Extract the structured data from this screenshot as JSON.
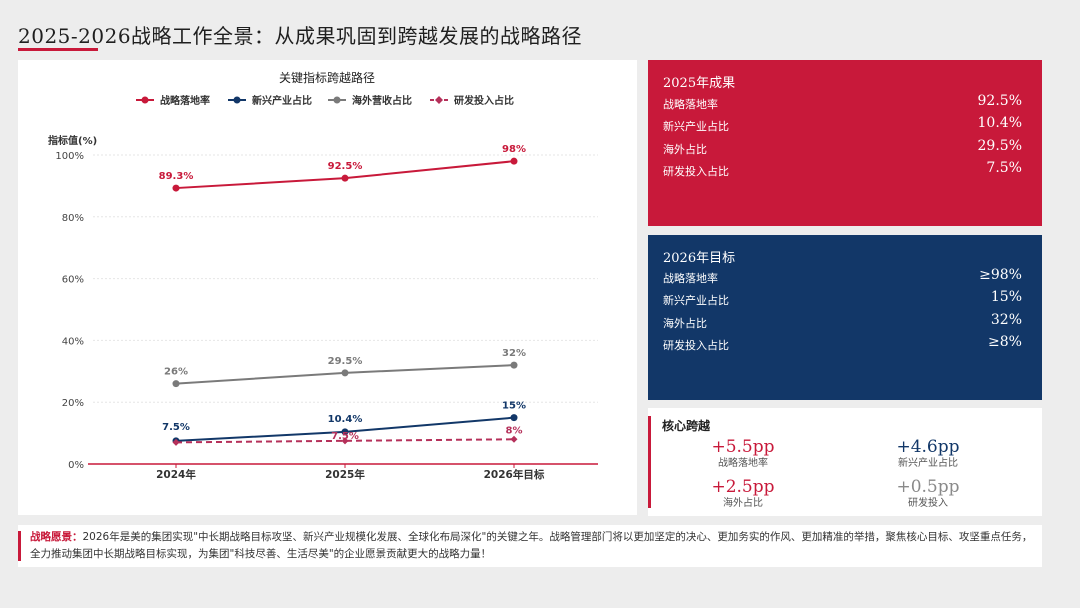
{
  "title": "2025-2026战略工作全景：从成果巩固到跨越发展的战略路径",
  "colors": {
    "red": "#c8193a",
    "navy": "#123768",
    "gray": "#7a7a7a",
    "crimson": "#b5305a"
  },
  "chart_data": {
    "type": "line",
    "title": "关键指标跨越路径",
    "ylabel": "指标值(%)",
    "xlabel": "",
    "categories": [
      "2024年",
      "2025年",
      "2026年目标"
    ],
    "ylim": [
      0,
      100
    ],
    "yticks": [
      0,
      20,
      40,
      60,
      80,
      100
    ],
    "ytick_labels": [
      "0%",
      "20%",
      "40%",
      "60%",
      "80%",
      "100%"
    ],
    "grid": true,
    "legend": "top",
    "series": [
      {
        "name": "战略落地率",
        "values": [
          89.3,
          92.5,
          98
        ],
        "labels": [
          "89.3%",
          "92.5%",
          "98%"
        ],
        "color": "#c8193a",
        "dashed": false
      },
      {
        "name": "新兴产业占比",
        "values": [
          7.5,
          10.4,
          15
        ],
        "labels": [
          "7.5%",
          "10.4%",
          "15%"
        ],
        "color": "#123768",
        "dashed": false
      },
      {
        "name": "海外营收占比",
        "values": [
          26,
          29.5,
          32
        ],
        "labels": [
          "26%",
          "29.5%",
          "32%"
        ],
        "color": "#7a7a7a",
        "dashed": false
      },
      {
        "name": "研发投入占比",
        "values": [
          7,
          7.5,
          8
        ],
        "labels": [
          "",
          "7.5%",
          "8%"
        ],
        "color": "#b5305a",
        "dashed": true
      }
    ]
  },
  "results2025": {
    "title": "2025年成果",
    "rows": [
      {
        "label": "战略落地率",
        "value": "92.5%"
      },
      {
        "label": "新兴产业占比",
        "value": "10.4%"
      },
      {
        "label": "海外占比",
        "value": "29.5%"
      },
      {
        "label": "研发投入占比",
        "value": "7.5%"
      }
    ]
  },
  "targets2026": {
    "title": "2026年目标",
    "rows": [
      {
        "label": "战略落地率",
        "value": "≥98%"
      },
      {
        "label": "新兴产业占比",
        "value": "15%"
      },
      {
        "label": "海外占比",
        "value": "32%"
      },
      {
        "label": "研发投入占比",
        "value": "≥8%"
      }
    ]
  },
  "core": {
    "title": "核心跨越",
    "metrics": [
      {
        "value": "+5.5pp",
        "label": "战略落地率",
        "color": "#c8193a"
      },
      {
        "value": "+4.6pp",
        "label": "新兴产业占比",
        "color": "#123768"
      },
      {
        "value": "+2.5pp",
        "label": "海外占比",
        "color": "#c8193a"
      },
      {
        "value": "+0.5pp",
        "label": "研发投入",
        "color": "#8a8a8a"
      }
    ]
  },
  "footer": {
    "label": "战略愿景：",
    "text": "2026年是美的集团实现\"中长期战略目标攻坚、新兴产业规模化发展、全球化布局深化\"的关键之年。战略管理部门将以更加坚定的决心、更加务实的作风、更加精准的举措，聚焦核心目标、攻坚重点任务，全力推动集团中长期战略目标实现，为集团\"科技尽善、生活尽美\"的企业愿景贡献更大的战略力量！"
  }
}
